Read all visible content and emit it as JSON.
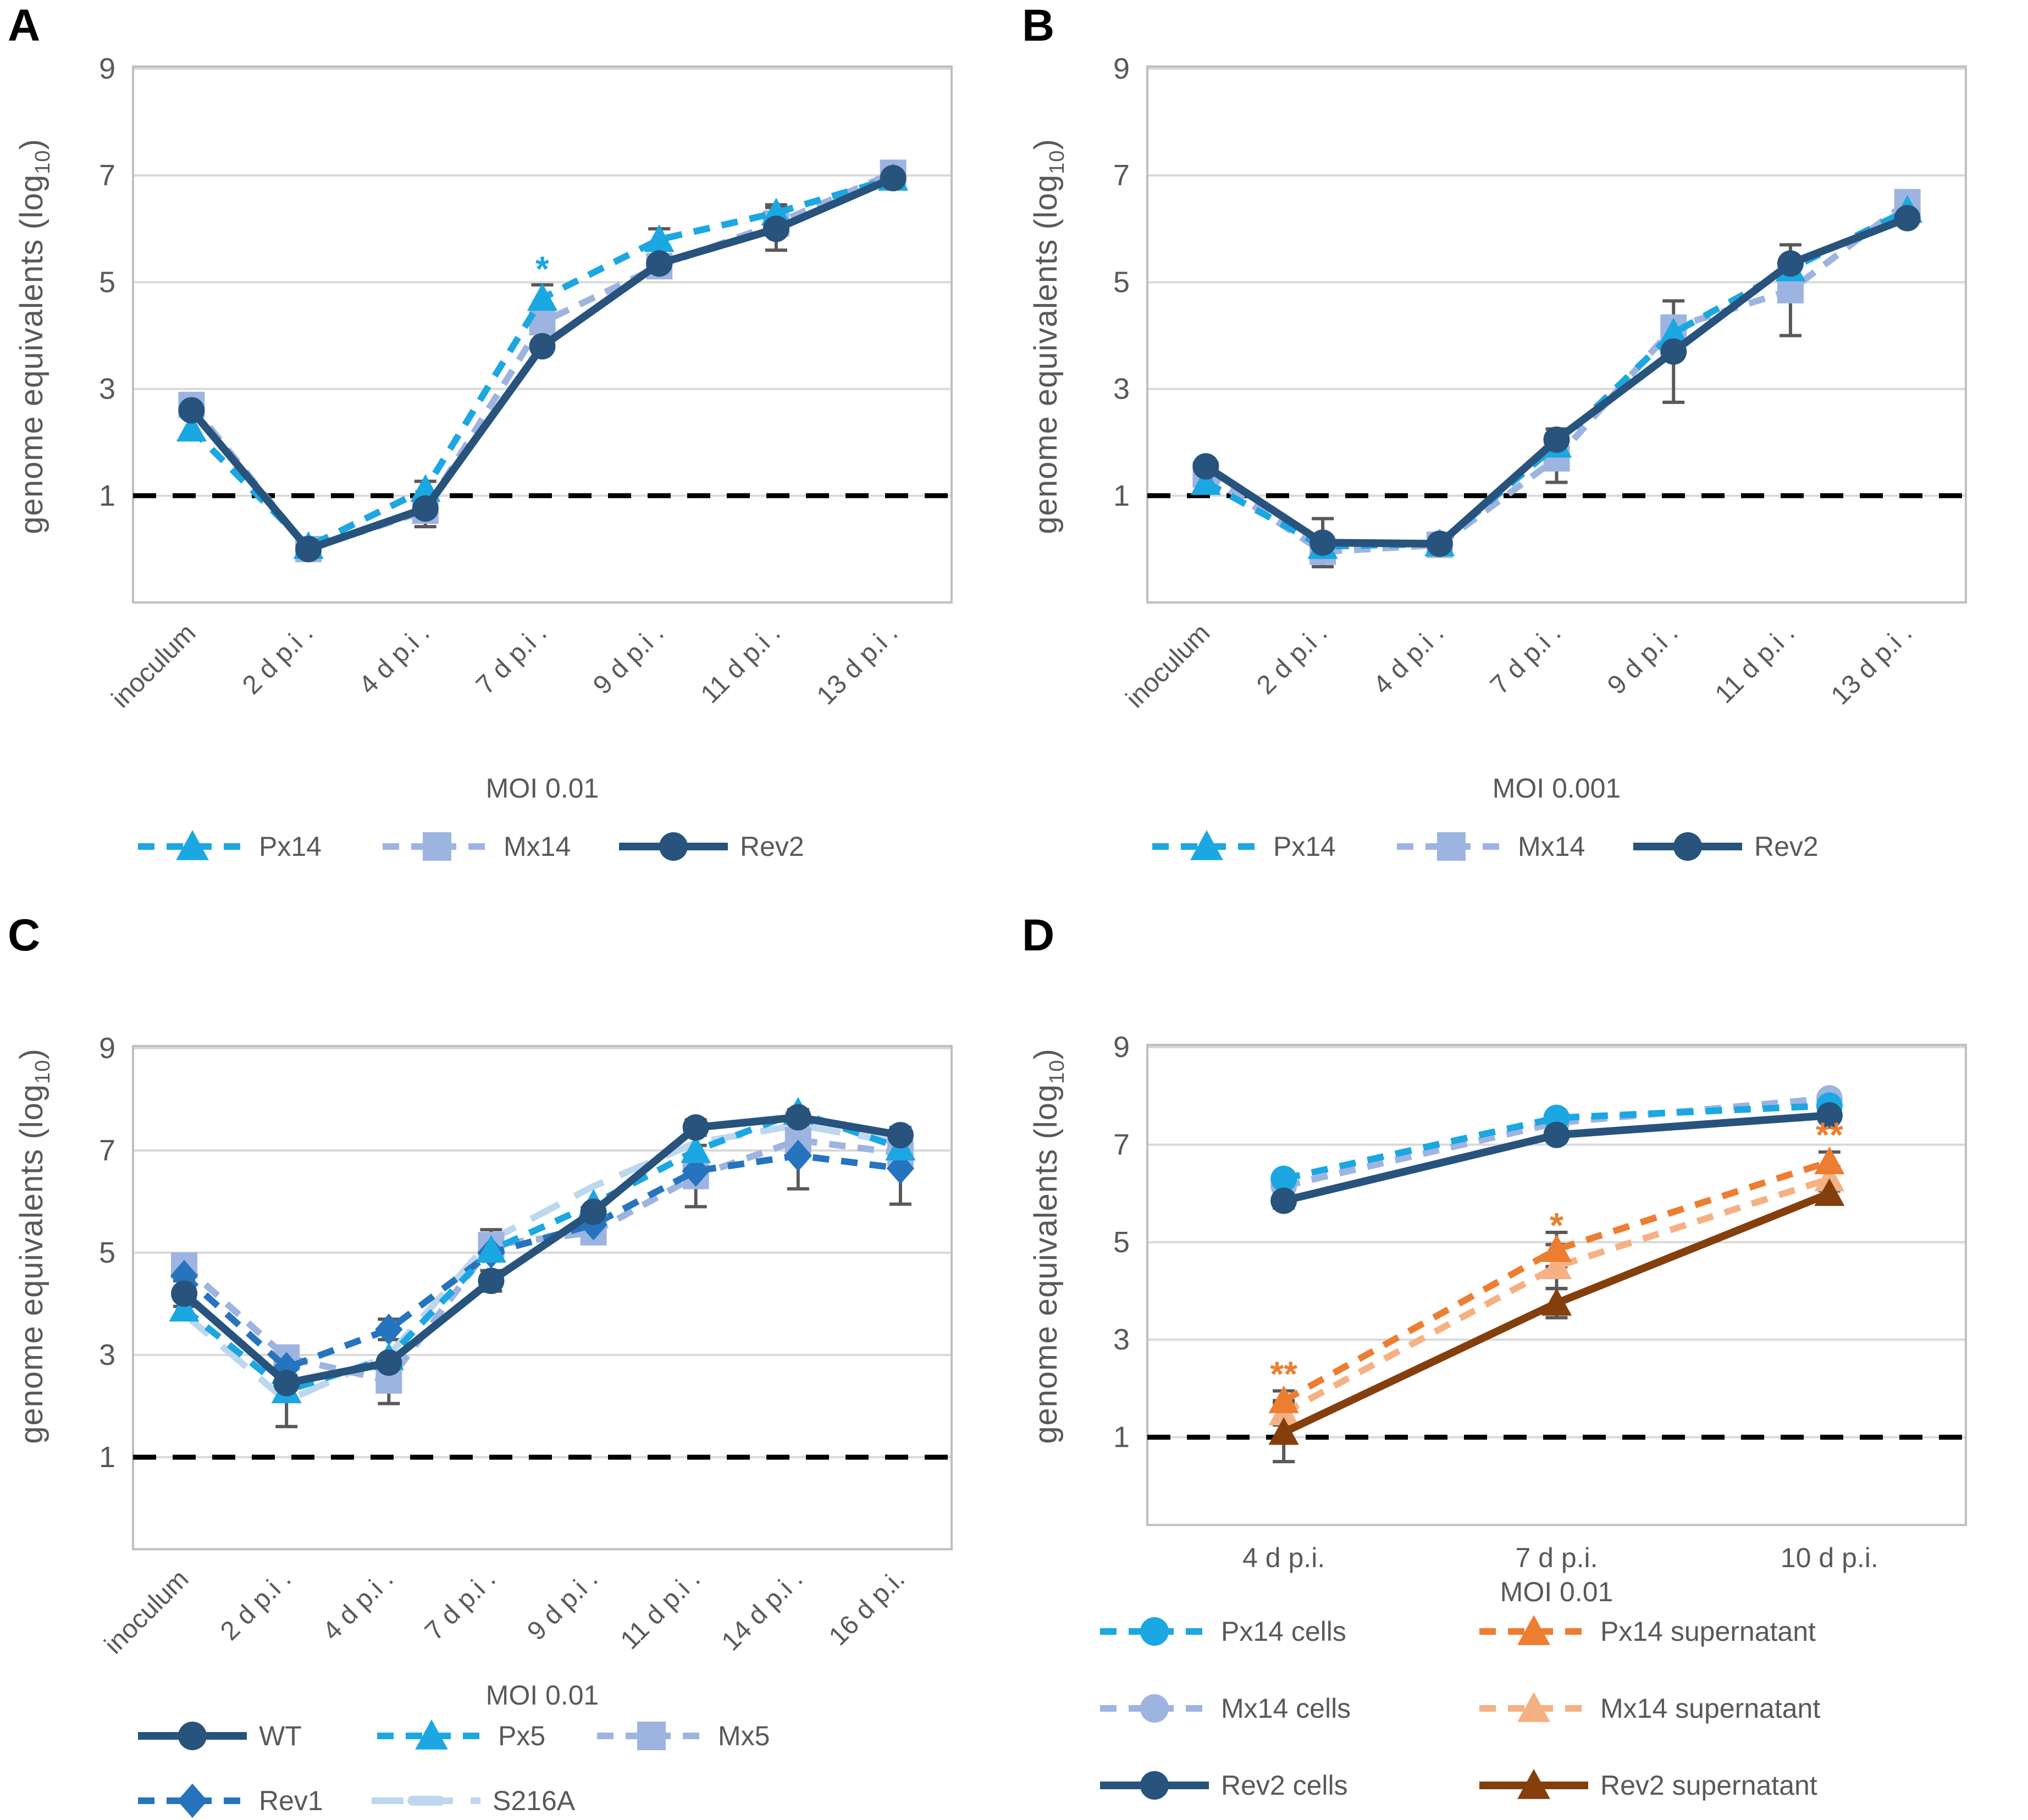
{
  "chart_data": [
    {
      "panel_label": "A",
      "type": "line",
      "ylabel": {
        "pre": "genome equivalents (log",
        "sub": "10",
        "post": ")"
      },
      "xlabel": "MOI 0.01",
      "categories": [
        "inoculum",
        "2 d p.i .",
        "4 d p.i .",
        "7 d p.i .",
        "9 d p.i .",
        "11 d p.i .",
        "13 d p.i ."
      ],
      "y_ticks": [
        9,
        7,
        5,
        3,
        1
      ],
      "ylim": [
        -1.0,
        9
      ],
      "limit_line_y": 1,
      "grid": true,
      "legend_position": "bottom",
      "series": [
        {
          "name": "Mx14",
          "color": "#9DB4E0",
          "dash": "dash",
          "marker": "square",
          "values": [
            2.7,
            0.0,
            0.72,
            4.25,
            5.3,
            6.1,
            7.05
          ],
          "errors": [
            0,
            0,
            0.3,
            0.15,
            0,
            0,
            0
          ]
        },
        {
          "name": "Px14",
          "color": "#1BA7E1",
          "dash": "dash",
          "marker": "triangle",
          "values": [
            2.25,
            0.05,
            1.12,
            4.7,
            5.8,
            6.3,
            6.95
          ],
          "errors": [
            0,
            0,
            0.15,
            0.25,
            0.2,
            0.15,
            0
          ]
        },
        {
          "name": "Rev2",
          "color": "#27537D",
          "dash": "solid",
          "marker": "circle",
          "values": [
            2.6,
            0.0,
            0.76,
            3.8,
            5.35,
            6.0,
            6.95
          ],
          "errors": [
            0,
            0,
            0,
            0,
            0,
            0.4,
            0
          ]
        }
      ],
      "legend_rows": [
        [
          1,
          0,
          2
        ]
      ],
      "annotations": [
        {
          "category_index": 3,
          "y": 5.25,
          "text": "*",
          "color": "#1BA7E1"
        }
      ]
    },
    {
      "panel_label": "B",
      "type": "line",
      "ylabel": {
        "pre": "genome equivalents (log",
        "sub": "10",
        "post": ")"
      },
      "xlabel": "MOI 0.001",
      "categories": [
        "inoculum",
        "2 d p.i .",
        "4 d p.i .",
        "7 d p.i .",
        "9 d p.i .",
        "11 d p.i .",
        "13 d p.i ."
      ],
      "y_ticks": [
        9,
        7,
        5,
        3,
        1
      ],
      "ylim": [
        -1.0,
        9
      ],
      "limit_line_y": 1,
      "grid": true,
      "legend_position": "bottom",
      "series": [
        {
          "name": "Mx14",
          "color": "#9DB4E0",
          "dash": "dash",
          "marker": "square",
          "values": [
            1.4,
            -0.05,
            0.08,
            1.7,
            4.15,
            4.85,
            6.5
          ],
          "errors": [
            0,
            0,
            0,
            0.45,
            0,
            0.85,
            0.15
          ]
        },
        {
          "name": "Px14",
          "color": "#1BA7E1",
          "dash": "dash",
          "marker": "triangle",
          "values": [
            1.25,
            0.05,
            0.1,
            1.95,
            4.05,
            5.25,
            6.35
          ],
          "errors": [
            0,
            0,
            0,
            0,
            0,
            0,
            0
          ]
        },
        {
          "name": "Rev2",
          "color": "#27537D",
          "dash": "solid",
          "marker": "circle",
          "values": [
            1.55,
            0.12,
            0.1,
            2.05,
            3.7,
            5.35,
            6.2
          ],
          "errors": [
            0,
            0.45,
            0,
            0.2,
            0.95,
            0,
            0
          ]
        }
      ],
      "legend_rows": [
        [
          1,
          0,
          2
        ]
      ],
      "annotations": []
    },
    {
      "panel_label": "C",
      "type": "line",
      "ylabel": {
        "pre": "genome equivalents (log",
        "sub": "10",
        "post": ")"
      },
      "xlabel": "MOI 0.01",
      "categories": [
        "inoculum",
        "2 d p.i .",
        "4 d p.i .",
        "7 d p.i .",
        "9 d p.i .",
        "11 d p.i .",
        "14 d p.i .",
        "16 d p.i."
      ],
      "y_ticks": [
        9,
        7,
        5,
        3,
        1
      ],
      "ylim": [
        -0.8,
        9
      ],
      "limit_line_y": 1,
      "grid": true,
      "legend_position": "bottom",
      "series": [
        {
          "name": "S216A",
          "color": "#BDD7EE",
          "dash": "longdash",
          "marker": "dashmark",
          "values": [
            3.8,
            2.1,
            3.0,
            5.25,
            6.3,
            7.15,
            7.5,
            7.15
          ],
          "errors": [
            0,
            0.5,
            0,
            0.2,
            0,
            0,
            0,
            0
          ]
        },
        {
          "name": "Mx5",
          "color": "#9DB4E0",
          "dash": "dash",
          "marker": "square",
          "values": [
            4.75,
            2.95,
            2.5,
            5.15,
            5.4,
            6.5,
            7.2,
            6.95
          ],
          "errors": [
            0,
            0,
            0.45,
            0,
            0.15,
            0.6,
            0,
            0
          ]
        },
        {
          "name": "Rev1",
          "color": "#2673BE",
          "dash": "dash",
          "marker": "diamond",
          "values": [
            4.55,
            2.75,
            3.5,
            5.0,
            5.55,
            6.6,
            6.9,
            6.65
          ],
          "errors": [
            0,
            0,
            0.2,
            0,
            0,
            0,
            0.65,
            0.7
          ]
        },
        {
          "name": "Px5",
          "color": "#1BA7E1",
          "dash": "dash",
          "marker": "triangle",
          "values": [
            3.9,
            2.3,
            2.95,
            5.05,
            5.95,
            7.0,
            7.75,
            7.05
          ],
          "errors": [
            0,
            0,
            0,
            0,
            0,
            0,
            0,
            0
          ]
        },
        {
          "name": "WT",
          "color": "#27537D",
          "dash": "solid",
          "marker": "circle",
          "values": [
            4.2,
            2.45,
            2.85,
            4.45,
            5.8,
            7.45,
            7.65,
            7.3
          ],
          "errors": [
            0.25,
            0,
            0,
            0.2,
            0,
            0.15,
            0.15,
            0.15
          ]
        }
      ],
      "legend_rows": [
        [
          4,
          3,
          1
        ],
        [
          2,
          0
        ]
      ],
      "annotations": []
    },
    {
      "panel_label": "D",
      "type": "line",
      "ylabel": {
        "pre": "genome equivalents (log",
        "sub": "10",
        "post": ")"
      },
      "xlabel": "MOI 0.01",
      "categories": [
        "4 d p.i.",
        "7 d p.i.",
        "10 d p.i."
      ],
      "y_ticks": [
        9,
        7,
        5,
        3,
        1
      ],
      "ylim": [
        -0.8,
        9
      ],
      "limit_line_y": 1,
      "grid": true,
      "legend_position": "bottom",
      "series": [
        {
          "name": "Mx14 cells",
          "color": "#9DB4E0",
          "dash": "dash",
          "marker": "circle",
          "values": [
            6.15,
            7.45,
            7.95
          ],
          "errors": [
            0,
            0,
            0
          ]
        },
        {
          "name": "Px14 cells",
          "color": "#1BA7E1",
          "dash": "dash",
          "marker": "circle",
          "values": [
            6.3,
            7.55,
            7.8
          ],
          "errors": [
            0,
            0,
            0
          ]
        },
        {
          "name": "Rev2 cells",
          "color": "#27537D",
          "dash": "solid",
          "marker": "circle",
          "values": [
            5.85,
            7.2,
            7.6
          ],
          "errors": [
            0.15,
            0,
            0
          ]
        },
        {
          "name": "Mx14 supernatant",
          "color": "#F5B183",
          "dash": "dash",
          "marker": "triangle",
          "values": [
            1.5,
            4.5,
            6.3
          ],
          "errors": [
            0.25,
            0.45,
            0.25
          ]
        },
        {
          "name": "Px14 supernatant",
          "color": "#ED7D31",
          "dash": "dash",
          "marker": "triangle",
          "values": [
            1.75,
            4.85,
            6.65
          ],
          "errors": [
            0.2,
            0.35,
            0.2
          ]
        },
        {
          "name": "Rev2 supernatant",
          "color": "#843F0C",
          "dash": "solid",
          "marker": "triangle",
          "values": [
            1.1,
            3.75,
            6.0
          ],
          "errors": [
            0.6,
            0.3,
            0.15
          ]
        }
      ],
      "legend_rows": [
        [
          1,
          4
        ],
        [
          0,
          3
        ],
        [
          2,
          5
        ]
      ],
      "annotations": [
        {
          "category_index": 0,
          "y": 2.3,
          "text": "**",
          "color": "#ED7D31"
        },
        {
          "category_index": 1,
          "y": 5.35,
          "text": "*",
          "color": "#ED7D31"
        },
        {
          "category_index": 2,
          "y": 7.2,
          "text": "**",
          "color": "#ED7D31"
        }
      ]
    }
  ],
  "style_colors": {
    "axis_text": "#595959",
    "gridline": "#D9D9D9",
    "plot_border": "#BFBFBF",
    "error_bar": "#595959",
    "limit_line": "#000000"
  }
}
